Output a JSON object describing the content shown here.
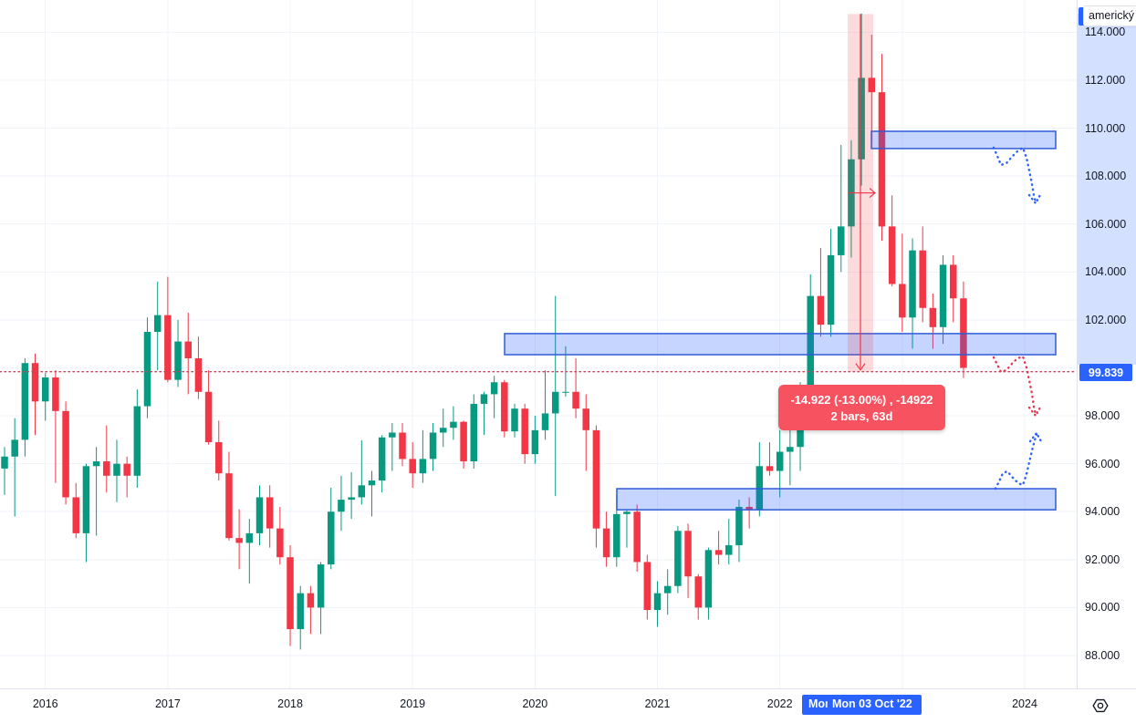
{
  "symbol": {
    "name": "americký"
  },
  "crosshair": {
    "price": "99.839",
    "date": "Mon 03 Oct '22",
    "date_fragment": "Mon"
  },
  "measure": {
    "line1": "-14.922 (-13.00%) , -14922",
    "line2": "2 bars, 63d",
    "price_from": 114.761,
    "price_to": 99.839,
    "band_x1": 929,
    "band_x2": 957
  },
  "colors": {
    "up": "#089981",
    "down": "#f23645",
    "accent_blue": "#2962ff",
    "zone_border": "#2f5cd8",
    "zone_fill": "rgba(41,98,255,0.27)",
    "band_fill": "rgba(242,54,69,0.18)",
    "measure_line": "#f23645",
    "crosshair_dotted": "#c9445a",
    "arrow_blue": "#2962ff",
    "arrow_red": "#e23a54",
    "grid": "#f0f3fa",
    "tooltip_bg": "#f7525f",
    "axis_text": "#131722"
  },
  "chart_data": {
    "type": "candlestick",
    "title": "americký",
    "interval": "monthly",
    "x_start": "2015-09",
    "ylim": [
      86.6,
      115.3
    ],
    "grid": true,
    "price_ticks": [
      114,
      112,
      110,
      108,
      106,
      104,
      102,
      98,
      96,
      94,
      92,
      90,
      88
    ],
    "grid_prices": [
      88,
      90,
      92,
      94,
      96,
      98,
      100,
      102,
      104,
      106,
      108,
      110,
      112,
      114
    ],
    "year_labels": [
      "2016",
      "2017",
      "2018",
      "2019",
      "2020",
      "2021",
      "2022",
      "2024"
    ],
    "grid_years": [
      2016,
      2017,
      2018,
      2019,
      2020,
      2021,
      2022,
      2023,
      2024
    ],
    "candles": [
      [
        "2015-09",
        95.8,
        96.7,
        94.7,
        96.3
      ],
      [
        "2015-10",
        96.3,
        97.9,
        93.8,
        97.0
      ],
      [
        "2015-11",
        97.0,
        100.4,
        96.3,
        100.2
      ],
      [
        "2015-12",
        100.2,
        100.6,
        97.2,
        98.6
      ],
      [
        "2016-01",
        98.6,
        99.8,
        97.8,
        99.6
      ],
      [
        "2016-02",
        99.6,
        99.9,
        95.2,
        98.2
      ],
      [
        "2016-03",
        98.2,
        98.6,
        94.3,
        94.6
      ],
      [
        "2016-04",
        94.6,
        95.2,
        92.9,
        93.1
      ],
      [
        "2016-05",
        93.1,
        96.0,
        91.9,
        95.9
      ],
      [
        "2016-06",
        95.9,
        96.7,
        93.0,
        96.1
      ],
      [
        "2016-07",
        96.1,
        97.6,
        94.8,
        95.5
      ],
      [
        "2016-08",
        95.5,
        97.0,
        94.4,
        96.0
      ],
      [
        "2016-09",
        96.0,
        96.3,
        94.6,
        95.5
      ],
      [
        "2016-10",
        95.5,
        99.1,
        95.0,
        98.4
      ],
      [
        "2016-11",
        98.4,
        102.1,
        97.9,
        101.5
      ],
      [
        "2016-12",
        101.5,
        103.6,
        99.9,
        102.2
      ],
      [
        "2017-01",
        102.2,
        103.8,
        99.4,
        99.5
      ],
      [
        "2017-02",
        99.5,
        102.0,
        99.2,
        101.1
      ],
      [
        "2017-03",
        101.1,
        102.3,
        98.9,
        100.4
      ],
      [
        "2017-04",
        100.4,
        101.3,
        98.7,
        99.0
      ],
      [
        "2017-05",
        99.0,
        99.9,
        96.8,
        96.9
      ],
      [
        "2017-06",
        96.9,
        97.8,
        95.3,
        95.6
      ],
      [
        "2017-07",
        95.6,
        96.5,
        92.8,
        92.9
      ],
      [
        "2017-08",
        92.9,
        94.1,
        91.6,
        92.7
      ],
      [
        "2017-09",
        92.7,
        93.7,
        91.0,
        93.1
      ],
      [
        "2017-10",
        93.1,
        95.1,
        92.6,
        94.6
      ],
      [
        "2017-11",
        94.6,
        95.1,
        92.5,
        93.3
      ],
      [
        "2017-12",
        93.3,
        94.2,
        91.8,
        92.1
      ],
      [
        "2018-01",
        92.1,
        92.6,
        88.4,
        89.1
      ],
      [
        "2018-02",
        89.1,
        90.9,
        88.25,
        90.6
      ],
      [
        "2018-03",
        90.6,
        90.9,
        88.9,
        90.0
      ],
      [
        "2018-04",
        90.0,
        91.9,
        88.9,
        91.8
      ],
      [
        "2018-05",
        91.8,
        95.0,
        91.6,
        94.0
      ],
      [
        "2018-06",
        94.0,
        95.5,
        93.2,
        94.5
      ],
      [
        "2018-07",
        94.5,
        95.65,
        93.7,
        94.6
      ],
      [
        "2018-08",
        94.6,
        96.98,
        94.3,
        95.1
      ],
      [
        "2018-09",
        95.1,
        95.7,
        93.8,
        95.3
      ],
      [
        "2018-10",
        95.3,
        97.2,
        94.8,
        97.1
      ],
      [
        "2018-11",
        97.1,
        97.7,
        95.7,
        97.3
      ],
      [
        "2018-12",
        97.3,
        97.7,
        95.9,
        96.2
      ],
      [
        "2019-01",
        96.2,
        96.9,
        95.0,
        95.6
      ],
      [
        "2019-02",
        95.6,
        97.4,
        95.2,
        96.2
      ],
      [
        "2019-03",
        96.2,
        97.7,
        95.7,
        97.3
      ],
      [
        "2019-04",
        97.3,
        98.3,
        96.7,
        97.5
      ],
      [
        "2019-05",
        97.5,
        98.4,
        97.0,
        97.75
      ],
      [
        "2019-06",
        97.75,
        97.8,
        95.8,
        96.1
      ],
      [
        "2019-07",
        96.1,
        98.9,
        95.8,
        98.5
      ],
      [
        "2019-08",
        98.5,
        99.0,
        97.2,
        98.9
      ],
      [
        "2019-09",
        98.9,
        99.67,
        97.9,
        99.4
      ],
      [
        "2019-10",
        99.4,
        99.5,
        97.1,
        97.35
      ],
      [
        "2019-11",
        97.35,
        98.5,
        97.1,
        98.3
      ],
      [
        "2019-12",
        98.3,
        98.5,
        96.0,
        96.4
      ],
      [
        "2020-01",
        96.4,
        98.0,
        96.0,
        97.4
      ],
      [
        "2020-02",
        97.4,
        99.9,
        97.0,
        98.1
      ],
      [
        "2020-03",
        98.1,
        103.0,
        94.65,
        99.0
      ],
      [
        "2020-04",
        99.0,
        100.9,
        98.8,
        99.0
      ],
      [
        "2020-05",
        99.0,
        100.4,
        97.9,
        98.3
      ],
      [
        "2020-06",
        98.3,
        98.9,
        95.7,
        97.4
      ],
      [
        "2020-07",
        97.4,
        97.6,
        92.5,
        93.3
      ],
      [
        "2020-08",
        93.3,
        94.0,
        91.7,
        92.1
      ],
      [
        "2020-09",
        92.1,
        94.7,
        91.7,
        93.9
      ],
      [
        "2020-10",
        93.9,
        94.1,
        92.5,
        94.0
      ],
      [
        "2020-11",
        94.0,
        94.3,
        91.5,
        91.9
      ],
      [
        "2020-12",
        91.9,
        92.2,
        89.5,
        89.9
      ],
      [
        "2021-01",
        89.9,
        91.1,
        89.2,
        90.6
      ],
      [
        "2021-02",
        90.6,
        91.6,
        89.7,
        90.9
      ],
      [
        "2021-03",
        90.9,
        93.4,
        90.6,
        93.2
      ],
      [
        "2021-04",
        93.2,
        93.5,
        90.4,
        91.3
      ],
      [
        "2021-05",
        91.3,
        91.4,
        89.5,
        90.0
      ],
      [
        "2021-06",
        90.0,
        92.5,
        89.5,
        92.4
      ],
      [
        "2021-07",
        92.4,
        93.2,
        91.8,
        92.2
      ],
      [
        "2021-08",
        92.2,
        93.7,
        91.8,
        92.6
      ],
      [
        "2021-09",
        92.6,
        94.5,
        91.9,
        94.2
      ],
      [
        "2021-10",
        94.2,
        94.6,
        93.3,
        94.1
      ],
      [
        "2021-11",
        94.1,
        96.9,
        93.8,
        95.9
      ],
      [
        "2021-12",
        95.9,
        96.9,
        95.5,
        95.7
      ],
      [
        "2022-01",
        95.7,
        97.4,
        94.6,
        96.5
      ],
      [
        "2022-02",
        96.5,
        97.8,
        95.1,
        96.7
      ],
      [
        "2022-03",
        96.7,
        99.4,
        95.7,
        98.3
      ],
      [
        "2022-04",
        98.3,
        103.9,
        97.7,
        103.0
      ],
      [
        "2022-05",
        103.0,
        105.0,
        101.3,
        101.8
      ],
      [
        "2022-06",
        101.8,
        105.8,
        101.3,
        104.7
      ],
      [
        "2022-07",
        104.7,
        109.3,
        104.0,
        105.9
      ],
      [
        "2022-08",
        105.9,
        109.5,
        104.6,
        108.7
      ],
      [
        "2022-09",
        108.7,
        114.78,
        107.6,
        112.1
      ],
      [
        "2022-10",
        112.1,
        113.9,
        109.5,
        111.5
      ],
      [
        "2022-11",
        111.5,
        113.1,
        105.3,
        105.9
      ],
      [
        "2022-12",
        105.9,
        107.2,
        103.4,
        103.5
      ],
      [
        "2023-01",
        103.5,
        105.6,
        101.5,
        102.1
      ],
      [
        "2023-02",
        102.1,
        105.4,
        100.8,
        104.9
      ],
      [
        "2023-03",
        104.9,
        105.9,
        101.9,
        102.5
      ],
      [
        "2023-04",
        102.5,
        103.1,
        100.8,
        101.7
      ],
      [
        "2023-05",
        101.7,
        104.7,
        101.0,
        104.3
      ],
      [
        "2023-06",
        104.3,
        104.7,
        101.9,
        102.9
      ],
      [
        "2023-07",
        102.9,
        103.6,
        99.58,
        100.0
      ]
    ],
    "zones": [
      {
        "name": "zone-upper",
        "x1": 955,
        "x2": 1157,
        "price_top": 109.87,
        "price_bottom": 109.15
      },
      {
        "name": "zone-middle",
        "x1": 553,
        "x2": 1157,
        "price_top": 101.43,
        "price_bottom": 100.55
      },
      {
        "name": "zone-lower",
        "x1": 676,
        "x2": 1157,
        "price_top": 94.96,
        "price_bottom": 94.08
      }
    ],
    "annotations": [
      {
        "name": "projection-arrow-upper",
        "color": "blue",
        "points": [
          [
            1089,
            162
          ],
          [
            1093,
            171
          ],
          [
            1097,
            181
          ],
          [
            1103,
            179
          ],
          [
            1109,
            172
          ],
          [
            1115,
            166
          ],
          [
            1121,
            162
          ],
          [
            1125,
            173
          ],
          [
            1128,
            187
          ],
          [
            1131,
            202
          ],
          [
            1133,
            214
          ],
          [
            1135,
            222
          ]
        ],
        "head": [
          [
            1128,
            214
          ],
          [
            1135,
            223
          ],
          [
            1141,
            212
          ]
        ]
      },
      {
        "name": "projection-arrow-middle",
        "color": "red",
        "points": [
          [
            1089,
            392
          ],
          [
            1093,
            400
          ],
          [
            1097,
            408
          ],
          [
            1103,
            406
          ],
          [
            1109,
            399
          ],
          [
            1115,
            393
          ],
          [
            1121,
            391
          ],
          [
            1125,
            403
          ],
          [
            1128,
            417
          ],
          [
            1131,
            432
          ],
          [
            1133,
            446
          ],
          [
            1135,
            455
          ]
        ],
        "head": [
          [
            1128,
            447
          ],
          [
            1135,
            456
          ],
          [
            1141,
            445
          ]
        ]
      },
      {
        "name": "projection-arrow-lower",
        "color": "blue",
        "points": [
          [
            1091,
            536
          ],
          [
            1095,
            528
          ],
          [
            1099,
            519
          ],
          [
            1104,
            517
          ],
          [
            1110,
            524
          ],
          [
            1116,
            530
          ],
          [
            1121,
            532
          ],
          [
            1125,
            520
          ],
          [
            1128,
            507
          ],
          [
            1131,
            494
          ],
          [
            1134,
            483
          ],
          [
            1136,
            476
          ]
        ],
        "head": [
          [
            1129,
            484
          ],
          [
            1136,
            475
          ],
          [
            1142,
            486
          ]
        ]
      }
    ]
  }
}
